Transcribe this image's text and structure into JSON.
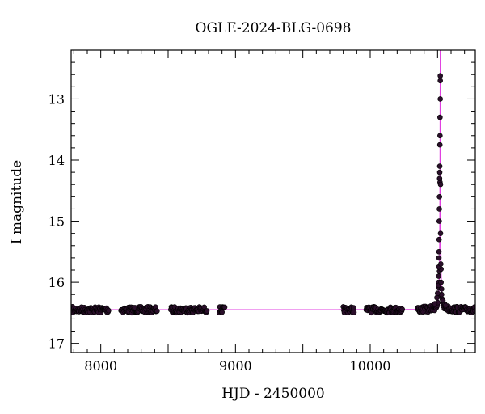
{
  "chart_data": {
    "type": "scatter",
    "title": "OGLE-2024-BLG-0698",
    "xlabel": "HJD - 2450000",
    "ylabel": "I magnitude",
    "xlim": [
      7780,
      10780
    ],
    "ylim": [
      17.15,
      12.2
    ],
    "y_inverted": true,
    "x_ticks": [
      8000,
      9000,
      10000
    ],
    "y_ticks": [
      13,
      14,
      15,
      16,
      17
    ],
    "x_minor_step": 100,
    "y_minor_step": 0.2,
    "baseline_mag": 16.45,
    "peak": {
      "t0": 10520,
      "mag": 12.62
    },
    "model_color": "#e040e0",
    "point_color": "#2a0f2a",
    "series": [
      {
        "segments": [
          {
            "x_start": 7790,
            "x_end": 8060
          },
          {
            "x_start": 8150,
            "x_end": 8420
          },
          {
            "x_start": 8520,
            "x_end": 8790
          },
          {
            "x_start": 8880,
            "x_end": 8920
          },
          {
            "x_start": 9800,
            "x_end": 9880
          },
          {
            "x_start": 9970,
            "x_end": 10240
          },
          {
            "x_start": 10350,
            "x_end": 10780
          }
        ],
        "peak_points": [
          {
            "x": 10520,
            "y": 12.62
          },
          {
            "x": 10520,
            "y": 12.7
          },
          {
            "x": 10520,
            "y": 13.0
          },
          {
            "x": 10518,
            "y": 13.3
          },
          {
            "x": 10518,
            "y": 13.6
          },
          {
            "x": 10517,
            "y": 13.75
          },
          {
            "x": 10516,
            "y": 14.1
          },
          {
            "x": 10516,
            "y": 14.2
          },
          {
            "x": 10515,
            "y": 14.3
          },
          {
            "x": 10514,
            "y": 14.6
          },
          {
            "x": 10513,
            "y": 14.8
          },
          {
            "x": 10512,
            "y": 15.0
          },
          {
            "x": 10511,
            "y": 15.3
          },
          {
            "x": 10510,
            "y": 15.5
          },
          {
            "x": 10510,
            "y": 15.6
          },
          {
            "x": 10509,
            "y": 15.75
          },
          {
            "x": 10508,
            "y": 15.9
          },
          {
            "x": 10508,
            "y": 16.0
          },
          {
            "x": 10507,
            "y": 16.05
          },
          {
            "x": 10522,
            "y": 15.2
          },
          {
            "x": 10524,
            "y": 15.7
          },
          {
            "x": 10526,
            "y": 16.0
          },
          {
            "x": 10530,
            "y": 16.2
          },
          {
            "x": 10495,
            "y": 16.25
          },
          {
            "x": 10500,
            "y": 16.18
          },
          {
            "x": 10540,
            "y": 16.3
          },
          {
            "x": 10480,
            "y": 16.35
          },
          {
            "x": 10560,
            "y": 16.38
          }
        ]
      }
    ]
  }
}
